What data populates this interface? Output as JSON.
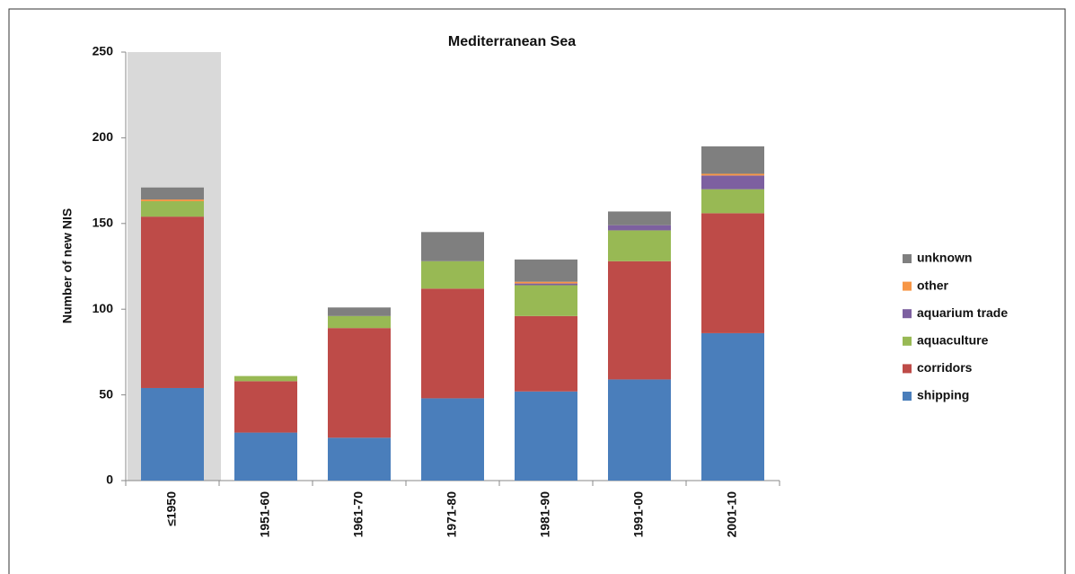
{
  "chart_data": {
    "type": "stacked_bar",
    "title": "Mediterranean Sea",
    "y_label": "Number of new NIS",
    "categories": [
      "≤1950",
      "1951-60",
      "1961-70",
      "1971-80",
      "1981-90",
      "1991-00",
      "2001-10"
    ],
    "series": [
      {
        "name": "shipping",
        "color": "#4a7ebb",
        "values": [
          54,
          28,
          25,
          48,
          52,
          59,
          86
        ]
      },
      {
        "name": "corridors",
        "color": "#be4b48",
        "values": [
          100,
          30,
          64,
          64,
          44,
          69,
          70
        ]
      },
      {
        "name": "aquaculture",
        "color": "#98b954",
        "values": [
          9,
          3,
          7,
          16,
          18,
          18,
          14
        ]
      },
      {
        "name": "aquarium trade",
        "color": "#7d60a0",
        "values": [
          0,
          0,
          0,
          0,
          1,
          3,
          8
        ]
      },
      {
        "name": "other",
        "color": "#f79646",
        "values": [
          1,
          0,
          0,
          0,
          1,
          0,
          1
        ]
      },
      {
        "name": "unknown",
        "color": "#7f7f7f",
        "values": [
          7,
          0,
          5,
          17,
          13,
          8,
          16
        ]
      }
    ],
    "ylim": [
      0,
      250
    ],
    "yticks": [
      0,
      50,
      100,
      150,
      200,
      250
    ],
    "legend": "right"
  }
}
